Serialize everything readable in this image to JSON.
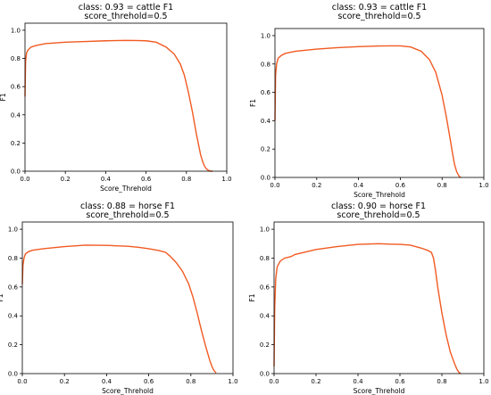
{
  "chart_data": [
    {
      "type": "line",
      "title_line1": "class: 0.93 = cattle F1",
      "title_line2": "score_threhold=0.5",
      "xlabel": "Score_Threhold",
      "ylabel": "F1",
      "xlim": [
        0.0,
        1.0
      ],
      "ylim": [
        0.0,
        1.05
      ],
      "xticks": [
        "0.0",
        "0.2",
        "0.4",
        "0.6",
        "0.8",
        "1.0"
      ],
      "yticks": [
        "0.0",
        "0.2",
        "0.4",
        "0.6",
        "0.8",
        "1.0"
      ],
      "grid": false,
      "color": "#f15a22",
      "series": [
        {
          "x": [
            0.0,
            0.003,
            0.008,
            0.015,
            0.03,
            0.05,
            0.1,
            0.2,
            0.3,
            0.4,
            0.5,
            0.55,
            0.6,
            0.65,
            0.7,
            0.74,
            0.77,
            0.79,
            0.81,
            0.83,
            0.85,
            0.87,
            0.88,
            0.89,
            0.9,
            0.91,
            0.92,
            0.93
          ],
          "y": [
            0.53,
            0.78,
            0.84,
            0.86,
            0.88,
            0.89,
            0.905,
            0.915,
            0.92,
            0.925,
            0.928,
            0.927,
            0.925,
            0.915,
            0.88,
            0.83,
            0.76,
            0.68,
            0.56,
            0.42,
            0.26,
            0.12,
            0.07,
            0.035,
            0.015,
            0.005,
            0.0,
            0.0
          ]
        }
      ]
    },
    {
      "type": "line",
      "title_line1": "class: 0.93 = cattle F1",
      "title_line2": "score_threhold=0.5",
      "xlabel": "Score_Threhold",
      "ylabel": "F1",
      "xlim": [
        0.0,
        1.0
      ],
      "ylim": [
        0.0,
        1.05
      ],
      "xticks": [
        "0.0",
        "0.2",
        "0.4",
        "0.6",
        "0.8",
        "1.0"
      ],
      "yticks": [
        "0.0",
        "0.2",
        "0.4",
        "0.6",
        "0.8",
        "1.0"
      ],
      "grid": false,
      "color": "#f15a22",
      "series": [
        {
          "x": [
            0.0,
            0.003,
            0.008,
            0.015,
            0.03,
            0.05,
            0.1,
            0.2,
            0.3,
            0.4,
            0.5,
            0.55,
            0.6,
            0.65,
            0.7,
            0.74,
            0.77,
            0.8,
            0.82,
            0.84,
            0.85,
            0.86,
            0.87,
            0.88,
            0.885,
            0.89
          ],
          "y": [
            0.4,
            0.72,
            0.8,
            0.84,
            0.86,
            0.875,
            0.89,
            0.905,
            0.915,
            0.922,
            0.927,
            0.928,
            0.928,
            0.92,
            0.89,
            0.83,
            0.74,
            0.58,
            0.43,
            0.26,
            0.17,
            0.09,
            0.04,
            0.012,
            0.004,
            0.0
          ]
        }
      ]
    },
    {
      "type": "line",
      "title_line1": "class: 0.88 = horse F1",
      "title_line2": "score_threhold=0.5",
      "xlabel": "Score_Threhold",
      "ylabel": "F1",
      "xlim": [
        0.0,
        1.0
      ],
      "ylim": [
        0.0,
        1.05
      ],
      "xticks": [
        "0.0",
        "0.2",
        "0.4",
        "0.6",
        "0.8",
        "1.0"
      ],
      "yticks": [
        "0.0",
        "0.2",
        "0.4",
        "0.6",
        "0.8",
        "1.0"
      ],
      "grid": false,
      "color": "#f15a22",
      "series": [
        {
          "x": [
            0.0,
            0.003,
            0.008,
            0.015,
            0.03,
            0.05,
            0.1,
            0.2,
            0.3,
            0.4,
            0.5,
            0.55,
            0.6,
            0.65,
            0.68,
            0.7,
            0.73,
            0.76,
            0.79,
            0.81,
            0.83,
            0.85,
            0.87,
            0.89,
            0.9,
            0.91,
            0.92
          ],
          "y": [
            0.62,
            0.75,
            0.8,
            0.83,
            0.845,
            0.855,
            0.865,
            0.88,
            0.89,
            0.888,
            0.882,
            0.875,
            0.865,
            0.852,
            0.84,
            0.815,
            0.77,
            0.71,
            0.62,
            0.53,
            0.42,
            0.3,
            0.19,
            0.09,
            0.05,
            0.02,
            0.005
          ]
        }
      ]
    },
    {
      "type": "line",
      "title_line1": "class: 0.90 = horse F1",
      "title_line2": "score_threhold=0.5",
      "xlabel": "Score_Threhold",
      "ylabel": "F1",
      "xlim": [
        0.0,
        1.0
      ],
      "ylim": [
        0.0,
        1.05
      ],
      "xticks": [
        "0.0",
        "0.2",
        "0.4",
        "0.6",
        "0.8",
        "1.0"
      ],
      "yticks": [
        "0.0",
        "0.2",
        "0.4",
        "0.6",
        "0.8",
        "1.0"
      ],
      "grid": false,
      "color": "#f15a22",
      "series": [
        {
          "x": [
            0.0,
            0.003,
            0.008,
            0.015,
            0.03,
            0.05,
            0.08,
            0.1,
            0.2,
            0.3,
            0.4,
            0.5,
            0.55,
            0.6,
            0.65,
            0.7,
            0.73,
            0.75,
            0.76,
            0.77,
            0.78,
            0.8,
            0.82,
            0.84,
            0.86,
            0.87,
            0.88,
            0.89
          ],
          "y": [
            0.05,
            0.45,
            0.66,
            0.74,
            0.78,
            0.8,
            0.81,
            0.825,
            0.86,
            0.88,
            0.895,
            0.9,
            0.897,
            0.895,
            0.89,
            0.87,
            0.855,
            0.84,
            0.8,
            0.71,
            0.6,
            0.42,
            0.27,
            0.15,
            0.07,
            0.035,
            0.01,
            0.0
          ]
        }
      ]
    }
  ]
}
